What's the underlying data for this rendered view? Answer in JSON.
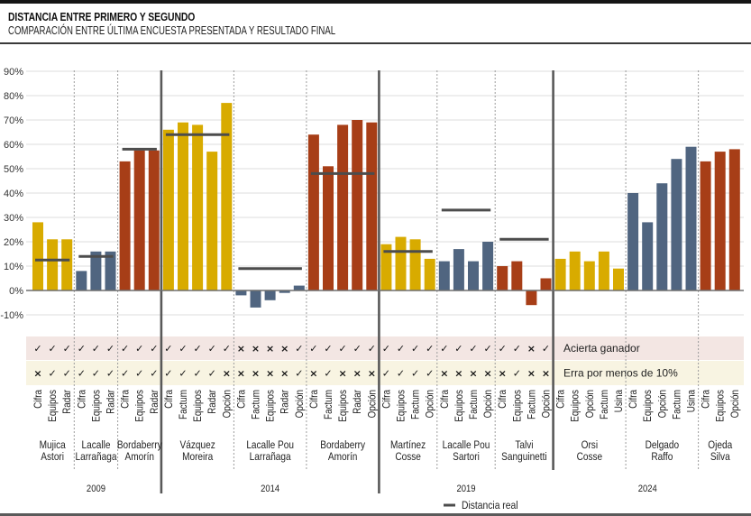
{
  "chart_data": {
    "type": "bar",
    "title": "DISTANCIA ENTRE PRIMERO Y SEGUNDO",
    "subtitle": "COMPARACIÓN ENTRE ÚLTIMA ENCUESTA PRESENTADA Y RESULTADO FINAL",
    "xlabel": "",
    "ylabel": "",
    "ylim": [
      -12,
      90
    ],
    "grid": true,
    "yaxis": {
      "ticks": [
        90,
        80,
        70,
        60,
        50,
        40,
        30,
        20,
        10,
        0,
        -10
      ],
      "tick_labels": [
        "90%",
        "80%",
        "70%",
        "60%",
        "50%",
        "40%",
        "30%",
        "20%",
        "10%",
        "0%",
        "-10%"
      ]
    },
    "legend": {
      "label": "Distancia real",
      "placement": "bottom-center",
      "color": "#4c4c4c"
    },
    "check_rows": [
      {
        "key": "acierta_ganador",
        "label": "Acierta ganador",
        "color": "#f3e6e3"
      },
      {
        "key": "erra_menos_10",
        "label": "Erra por menos de 10%",
        "color": "#f8f4e2"
      }
    ],
    "marks": {
      "yes": "✓",
      "no": "×"
    },
    "elections": [
      {
        "year": "2009",
        "groups": [
          {
            "candidates": [
              "Mujica",
              "Astori"
            ],
            "color": "#d8ab00",
            "real": 12.5,
            "polls": [
              {
                "pollster": "Cifra",
                "value": 28,
                "acierta_ganador": true,
                "erra_menos_10": false
              },
              {
                "pollster": "Equipos",
                "value": 21,
                "acierta_ganador": true,
                "erra_menos_10": true
              },
              {
                "pollster": "Radar",
                "value": 21,
                "acierta_ganador": true,
                "erra_menos_10": true
              }
            ]
          },
          {
            "candidates": [
              "Lacalle",
              "Larrañaga"
            ],
            "color": "#506580",
            "real": 14,
            "polls": [
              {
                "pollster": "Cifra",
                "value": 8,
                "acierta_ganador": true,
                "erra_menos_10": true
              },
              {
                "pollster": "Equipos",
                "value": 16,
                "acierta_ganador": true,
                "erra_menos_10": true
              },
              {
                "pollster": "Radar",
                "value": 16,
                "acierta_ganador": true,
                "erra_menos_10": true
              }
            ]
          },
          {
            "candidates": [
              "Bordaberry",
              "Amorín"
            ],
            "color": "#a73e17",
            "real": 58,
            "polls": [
              {
                "pollster": "Cifra",
                "value": 53,
                "acierta_ganador": true,
                "erra_menos_10": true
              },
              {
                "pollster": "Equipos",
                "value": 57.5,
                "acierta_ganador": true,
                "erra_menos_10": true
              },
              {
                "pollster": "Radar",
                "value": 57.5,
                "acierta_ganador": true,
                "erra_menos_10": true
              }
            ]
          }
        ]
      },
      {
        "year": "2014",
        "groups": [
          {
            "candidates": [
              "Vázquez",
              "Moreira"
            ],
            "color": "#d8ab00",
            "real": 64,
            "polls": [
              {
                "pollster": "Cifra",
                "value": 66,
                "acierta_ganador": true,
                "erra_menos_10": true
              },
              {
                "pollster": "Factum",
                "value": 69,
                "acierta_ganador": true,
                "erra_menos_10": true
              },
              {
                "pollster": "Equipos",
                "value": 68,
                "acierta_ganador": true,
                "erra_menos_10": true
              },
              {
                "pollster": "Radar",
                "value": 57,
                "acierta_ganador": true,
                "erra_menos_10": true
              },
              {
                "pollster": "Opción",
                "value": 77,
                "acierta_ganador": true,
                "erra_menos_10": false
              }
            ]
          },
          {
            "candidates": [
              "Lacalle Pou",
              "Larrañaga"
            ],
            "color": "#506580",
            "real": 9,
            "polls": [
              {
                "pollster": "Cifra",
                "value": -2,
                "acierta_ganador": false,
                "erra_menos_10": false
              },
              {
                "pollster": "Factum",
                "value": -7,
                "acierta_ganador": false,
                "erra_menos_10": false
              },
              {
                "pollster": "Equipos",
                "value": -4,
                "acierta_ganador": false,
                "erra_menos_10": false
              },
              {
                "pollster": "Radar",
                "value": -1,
                "acierta_ganador": false,
                "erra_menos_10": false
              },
              {
                "pollster": "Opción",
                "value": 2,
                "acierta_ganador": true,
                "erra_menos_10": true
              }
            ]
          },
          {
            "candidates": [
              "Bordaberry",
              "Amorín"
            ],
            "color": "#a73e17",
            "real": 48,
            "polls": [
              {
                "pollster": "Cifra",
                "value": 64,
                "acierta_ganador": true,
                "erra_menos_10": false
              },
              {
                "pollster": "Factum",
                "value": 51,
                "acierta_ganador": true,
                "erra_menos_10": true
              },
              {
                "pollster": "Equipos",
                "value": 68,
                "acierta_ganador": true,
                "erra_menos_10": false
              },
              {
                "pollster": "Radar",
                "value": 70,
                "acierta_ganador": true,
                "erra_menos_10": false
              },
              {
                "pollster": "Opción",
                "value": 69,
                "acierta_ganador": true,
                "erra_menos_10": false
              }
            ]
          }
        ]
      },
      {
        "year": "2019",
        "groups": [
          {
            "candidates": [
              "Martínez",
              "Cosse"
            ],
            "color": "#d8ab00",
            "real": 16,
            "polls": [
              {
                "pollster": "Cifra",
                "value": 19,
                "acierta_ganador": true,
                "erra_menos_10": true
              },
              {
                "pollster": "Equipos",
                "value": 22,
                "acierta_ganador": true,
                "erra_menos_10": true
              },
              {
                "pollster": "Factum",
                "value": 21,
                "acierta_ganador": true,
                "erra_menos_10": true
              },
              {
                "pollster": "Opción",
                "value": 13,
                "acierta_ganador": true,
                "erra_menos_10": true
              }
            ]
          },
          {
            "candidates": [
              "Lacalle Pou",
              "Sartori"
            ],
            "color": "#506580",
            "real": 33,
            "polls": [
              {
                "pollster": "Cifra",
                "value": 12,
                "acierta_ganador": true,
                "erra_menos_10": false
              },
              {
                "pollster": "Equipos",
                "value": 17,
                "acierta_ganador": true,
                "erra_menos_10": false
              },
              {
                "pollster": "Factum",
                "value": 12,
                "acierta_ganador": true,
                "erra_menos_10": false
              },
              {
                "pollster": "Opción",
                "value": 20,
                "acierta_ganador": true,
                "erra_menos_10": false
              }
            ]
          },
          {
            "candidates": [
              "Talvi",
              "Sanguinetti"
            ],
            "color": "#a73e17",
            "real": 21,
            "polls": [
              {
                "pollster": "Cifra",
                "value": 10,
                "acierta_ganador": true,
                "erra_menos_10": false
              },
              {
                "pollster": "Equipos",
                "value": 12,
                "acierta_ganador": true,
                "erra_menos_10": true
              },
              {
                "pollster": "Factum",
                "value": -6,
                "acierta_ganador": false,
                "erra_menos_10": false
              },
              {
                "pollster": "Opción",
                "value": 5,
                "acierta_ganador": true,
                "erra_menos_10": false
              }
            ]
          }
        ]
      },
      {
        "year": "2024",
        "groups": [
          {
            "candidates": [
              "Orsi",
              "Cosse"
            ],
            "color": "#d8ab00",
            "real": null,
            "polls": [
              {
                "pollster": "Cifra",
                "value": 13
              },
              {
                "pollster": "Equipos",
                "value": 16
              },
              {
                "pollster": "Opción",
                "value": 12
              },
              {
                "pollster": "Factum",
                "value": 16
              },
              {
                "pollster": "Usina",
                "value": 9
              }
            ]
          },
          {
            "candidates": [
              "Delgado",
              "Raffo"
            ],
            "color": "#506580",
            "real": null,
            "polls": [
              {
                "pollster": "Cifra",
                "value": 40
              },
              {
                "pollster": "Equipos",
                "value": 28
              },
              {
                "pollster": "Opción",
                "value": 44
              },
              {
                "pollster": "Factum",
                "value": 54
              },
              {
                "pollster": "Usina",
                "value": 59
              }
            ]
          },
          {
            "candidates": [
              "Ojeda",
              "Silva"
            ],
            "color": "#a73e17",
            "real": null,
            "polls": [
              {
                "pollster": "Cifra",
                "value": 53
              },
              {
                "pollster": "Equipos",
                "value": 57
              },
              {
                "pollster": "Opción",
                "value": 58
              }
            ]
          }
        ]
      }
    ]
  }
}
